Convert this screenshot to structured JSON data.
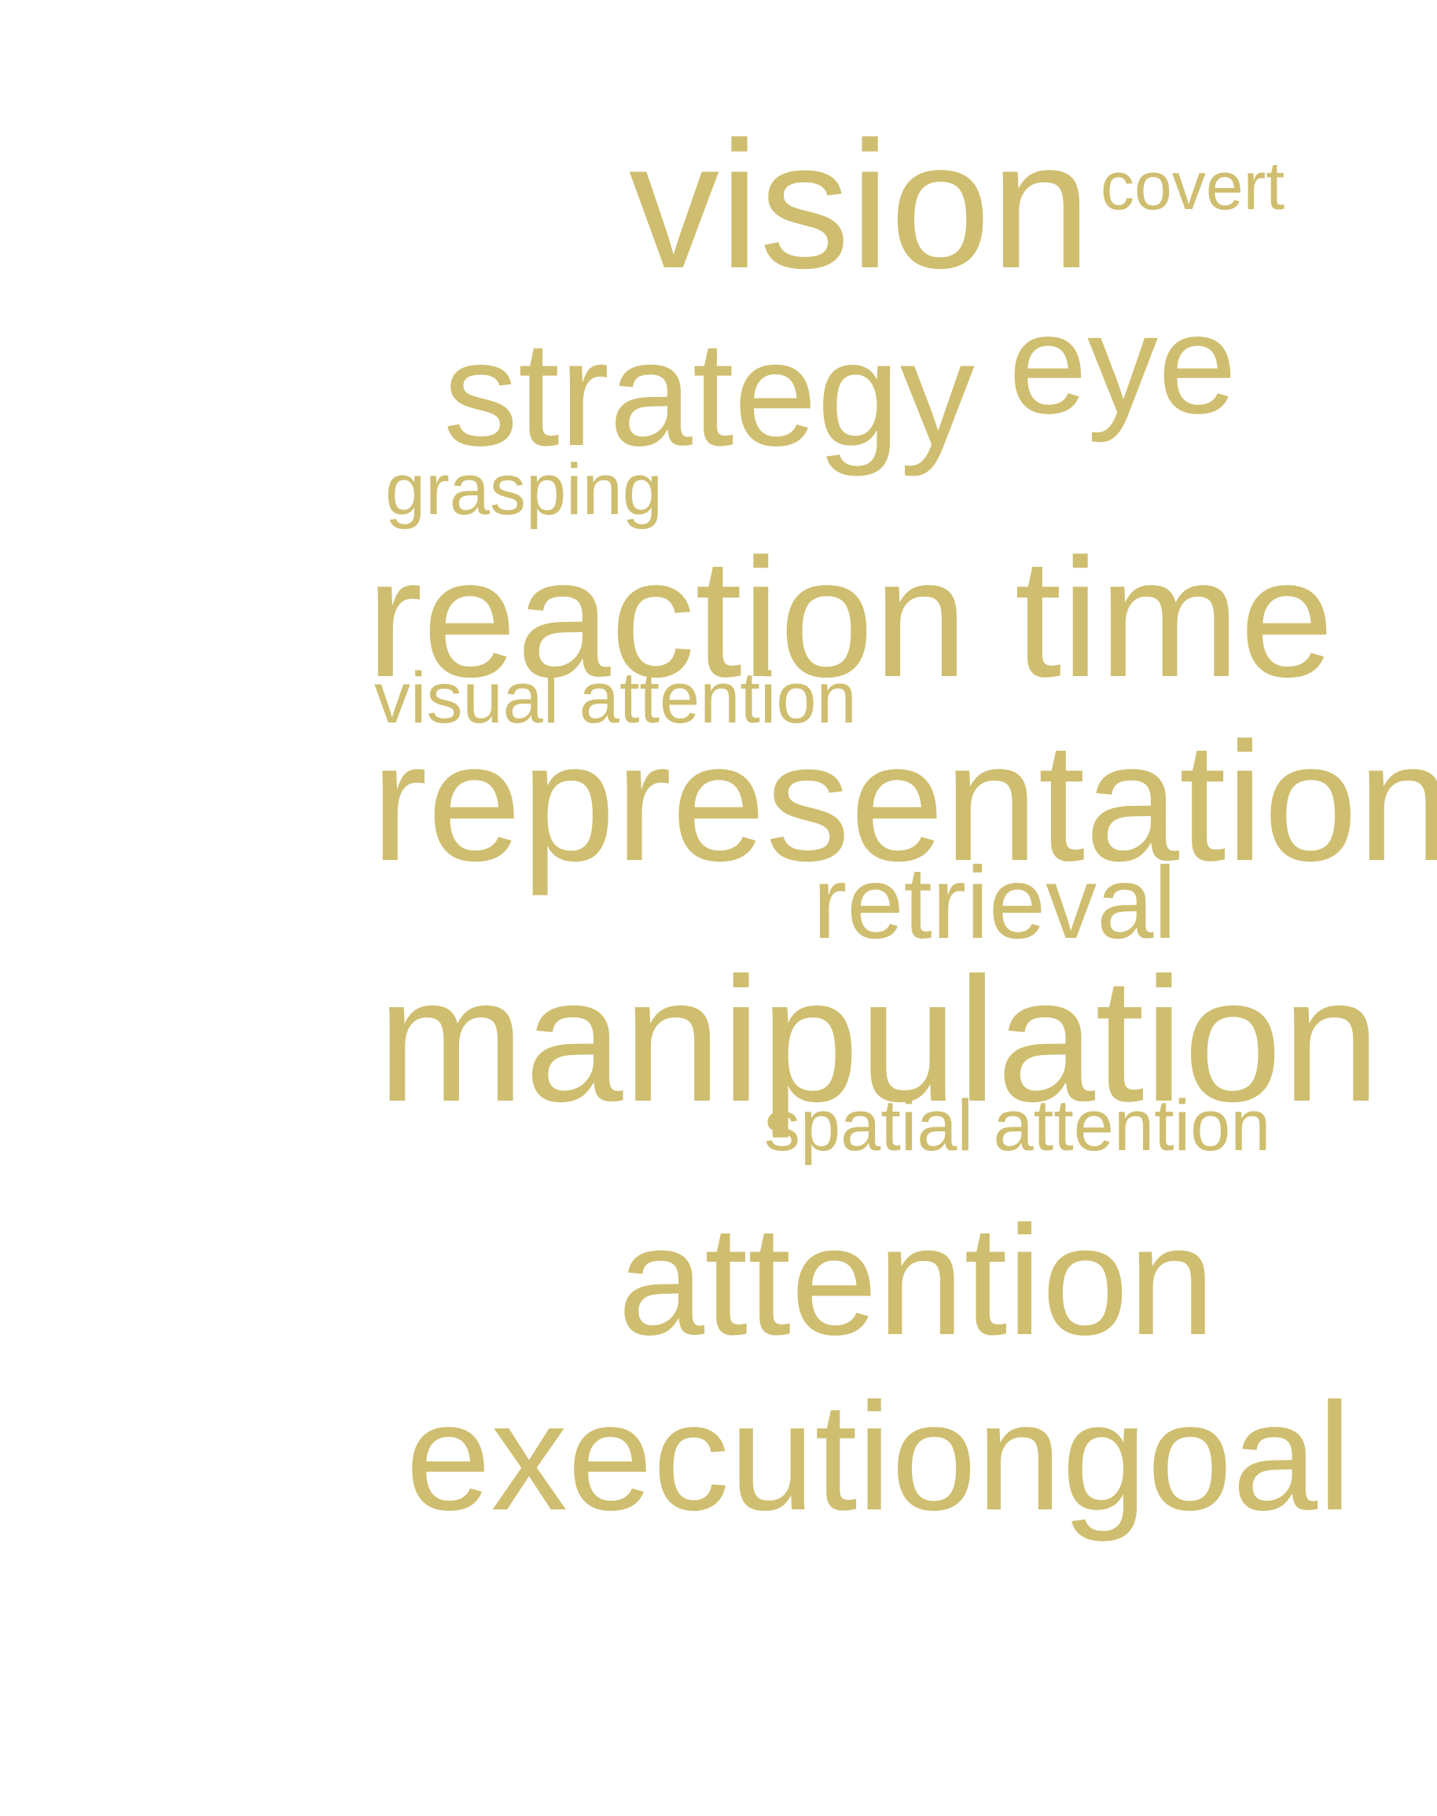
{
  "word_color": "#cfbe6f",
  "words": {
    "vision": "vision",
    "covert": "covert",
    "eye": "eye",
    "strategy": "strategy",
    "grasping": "grasping",
    "reaction_time": "reaction time",
    "visual_attention": "visual attention",
    "representation": "representation",
    "retrieval": "retrieval",
    "manipulation": "manipulation",
    "spatial_attention": "spatial attention",
    "attention": "attention",
    "executiongoal": "executiongoal"
  }
}
